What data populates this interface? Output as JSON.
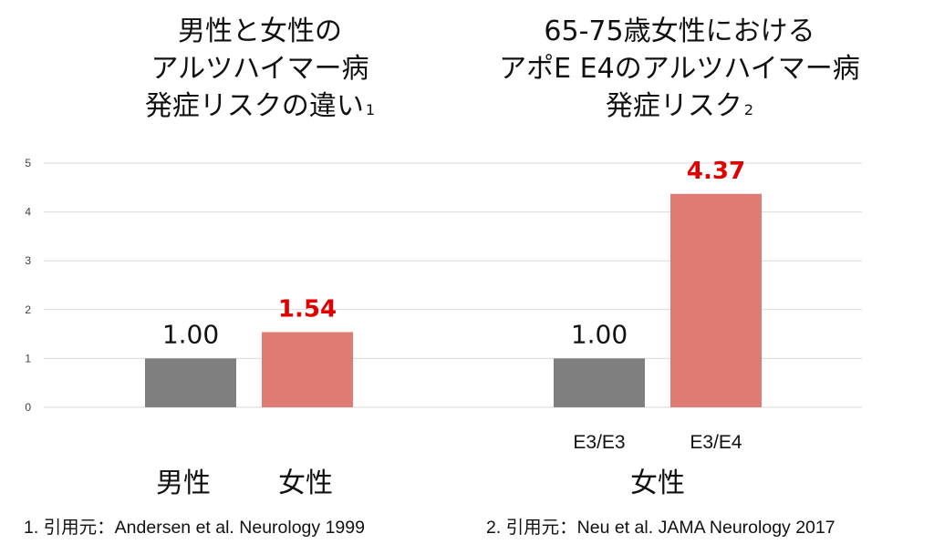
{
  "titles": {
    "left": {
      "lines": [
        "男性と女性の",
        "アルツハイマー病",
        "発症リスクの違い"
      ],
      "ref": "1"
    },
    "right": {
      "lines": [
        "65-75歳女性における",
        "アポE E4のアルツハイマー病",
        "発症リスク"
      ],
      "ref": "2"
    }
  },
  "group_labels": {
    "left_male": "男性",
    "left_female": "女性",
    "right": "女性"
  },
  "footnotes": {
    "left": "1. 引用元：Andersen et al. Neurology 1999",
    "right": "2. 引用元：Neu et al. JAMA Neurology 2017"
  },
  "colors": {
    "baseline_bar": "#7f7f7f",
    "risk_bar": "#e07b73",
    "highlight_label": "#e00000",
    "grid": "#d9d9d9",
    "axis_text": "#404040"
  },
  "chart_data": {
    "type": "bar",
    "ylim": [
      0,
      5
    ],
    "yticks": [
      "0",
      "1",
      "2",
      "3",
      "4",
      "5"
    ],
    "grid": true,
    "bars": [
      {
        "group": "left",
        "category": "",
        "value": 1.0,
        "label": "1.00",
        "highlight": false
      },
      {
        "group": "left",
        "category": "",
        "value": 1.54,
        "label": "1.54",
        "highlight": true
      },
      {
        "group": "right",
        "category": "E3/E3",
        "value": 1.0,
        "label": "1.00",
        "highlight": false
      },
      {
        "group": "right",
        "category": "E3/E4",
        "value": 4.37,
        "label": "4.37",
        "highlight": true
      }
    ]
  }
}
